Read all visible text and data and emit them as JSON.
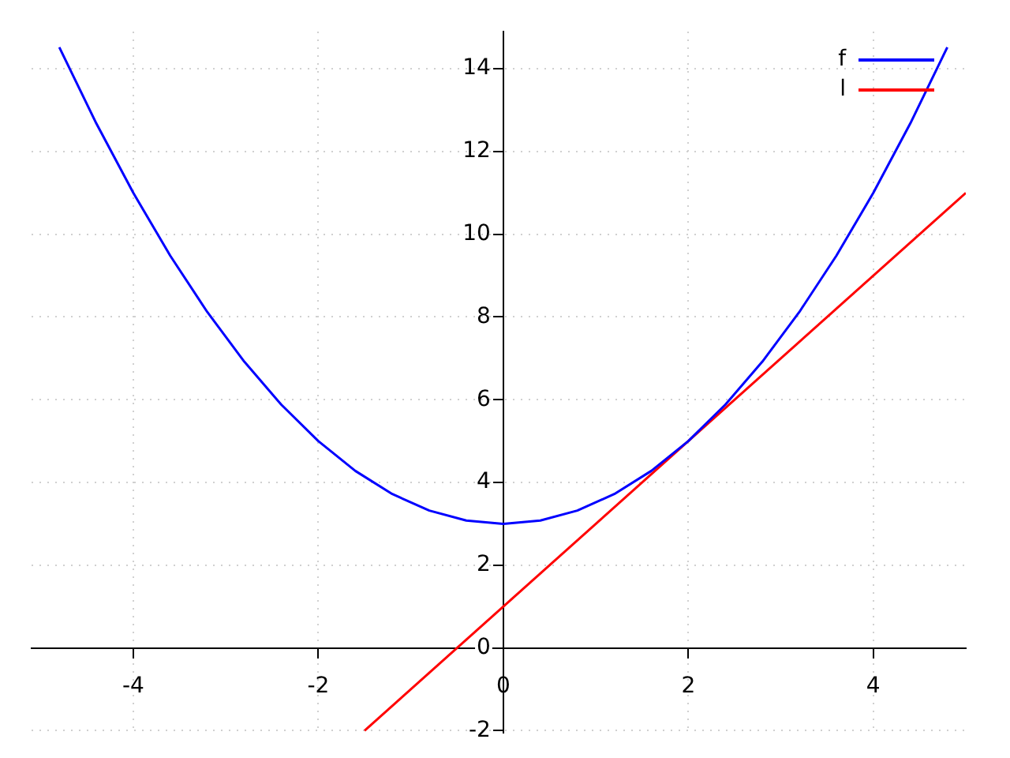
{
  "chart_data": {
    "type": "line",
    "xlim": [
      -5.1,
      5
    ],
    "ylim": [
      -2.05,
      14.9
    ],
    "xticks": [
      -4,
      -2,
      0,
      2,
      4
    ],
    "yticks": [
      -2,
      0,
      2,
      4,
      6,
      8,
      10,
      12,
      14
    ],
    "grid": true,
    "legend": "top right",
    "marker": "none",
    "line_style": "solid",
    "series": [
      {
        "name": "f",
        "color": "#0000ff",
        "x": [
          -4.8,
          -4.4,
          -4.0,
          -3.6,
          -3.2,
          -2.8,
          -2.4,
          -2.0,
          -1.6,
          -1.2,
          -0.8,
          -0.4,
          0,
          0.4,
          0.8,
          1.2,
          1.6,
          2.0,
          2.4,
          2.8,
          3.2,
          3.6,
          4.0,
          4.4,
          4.8
        ],
        "values": [
          14.52,
          12.68,
          11,
          9.48,
          8.12,
          6.92,
          5.88,
          5,
          4.28,
          3.72,
          3.32,
          3.08,
          3,
          3.08,
          3.32,
          3.72,
          4.28,
          5,
          5.88,
          6.92,
          8.12,
          9.48,
          11,
          12.68,
          14.52
        ]
      },
      {
        "name": "l",
        "color": "#ff0000",
        "x": [
          -1.5,
          5
        ],
        "values": [
          -2,
          11
        ]
      }
    ]
  }
}
